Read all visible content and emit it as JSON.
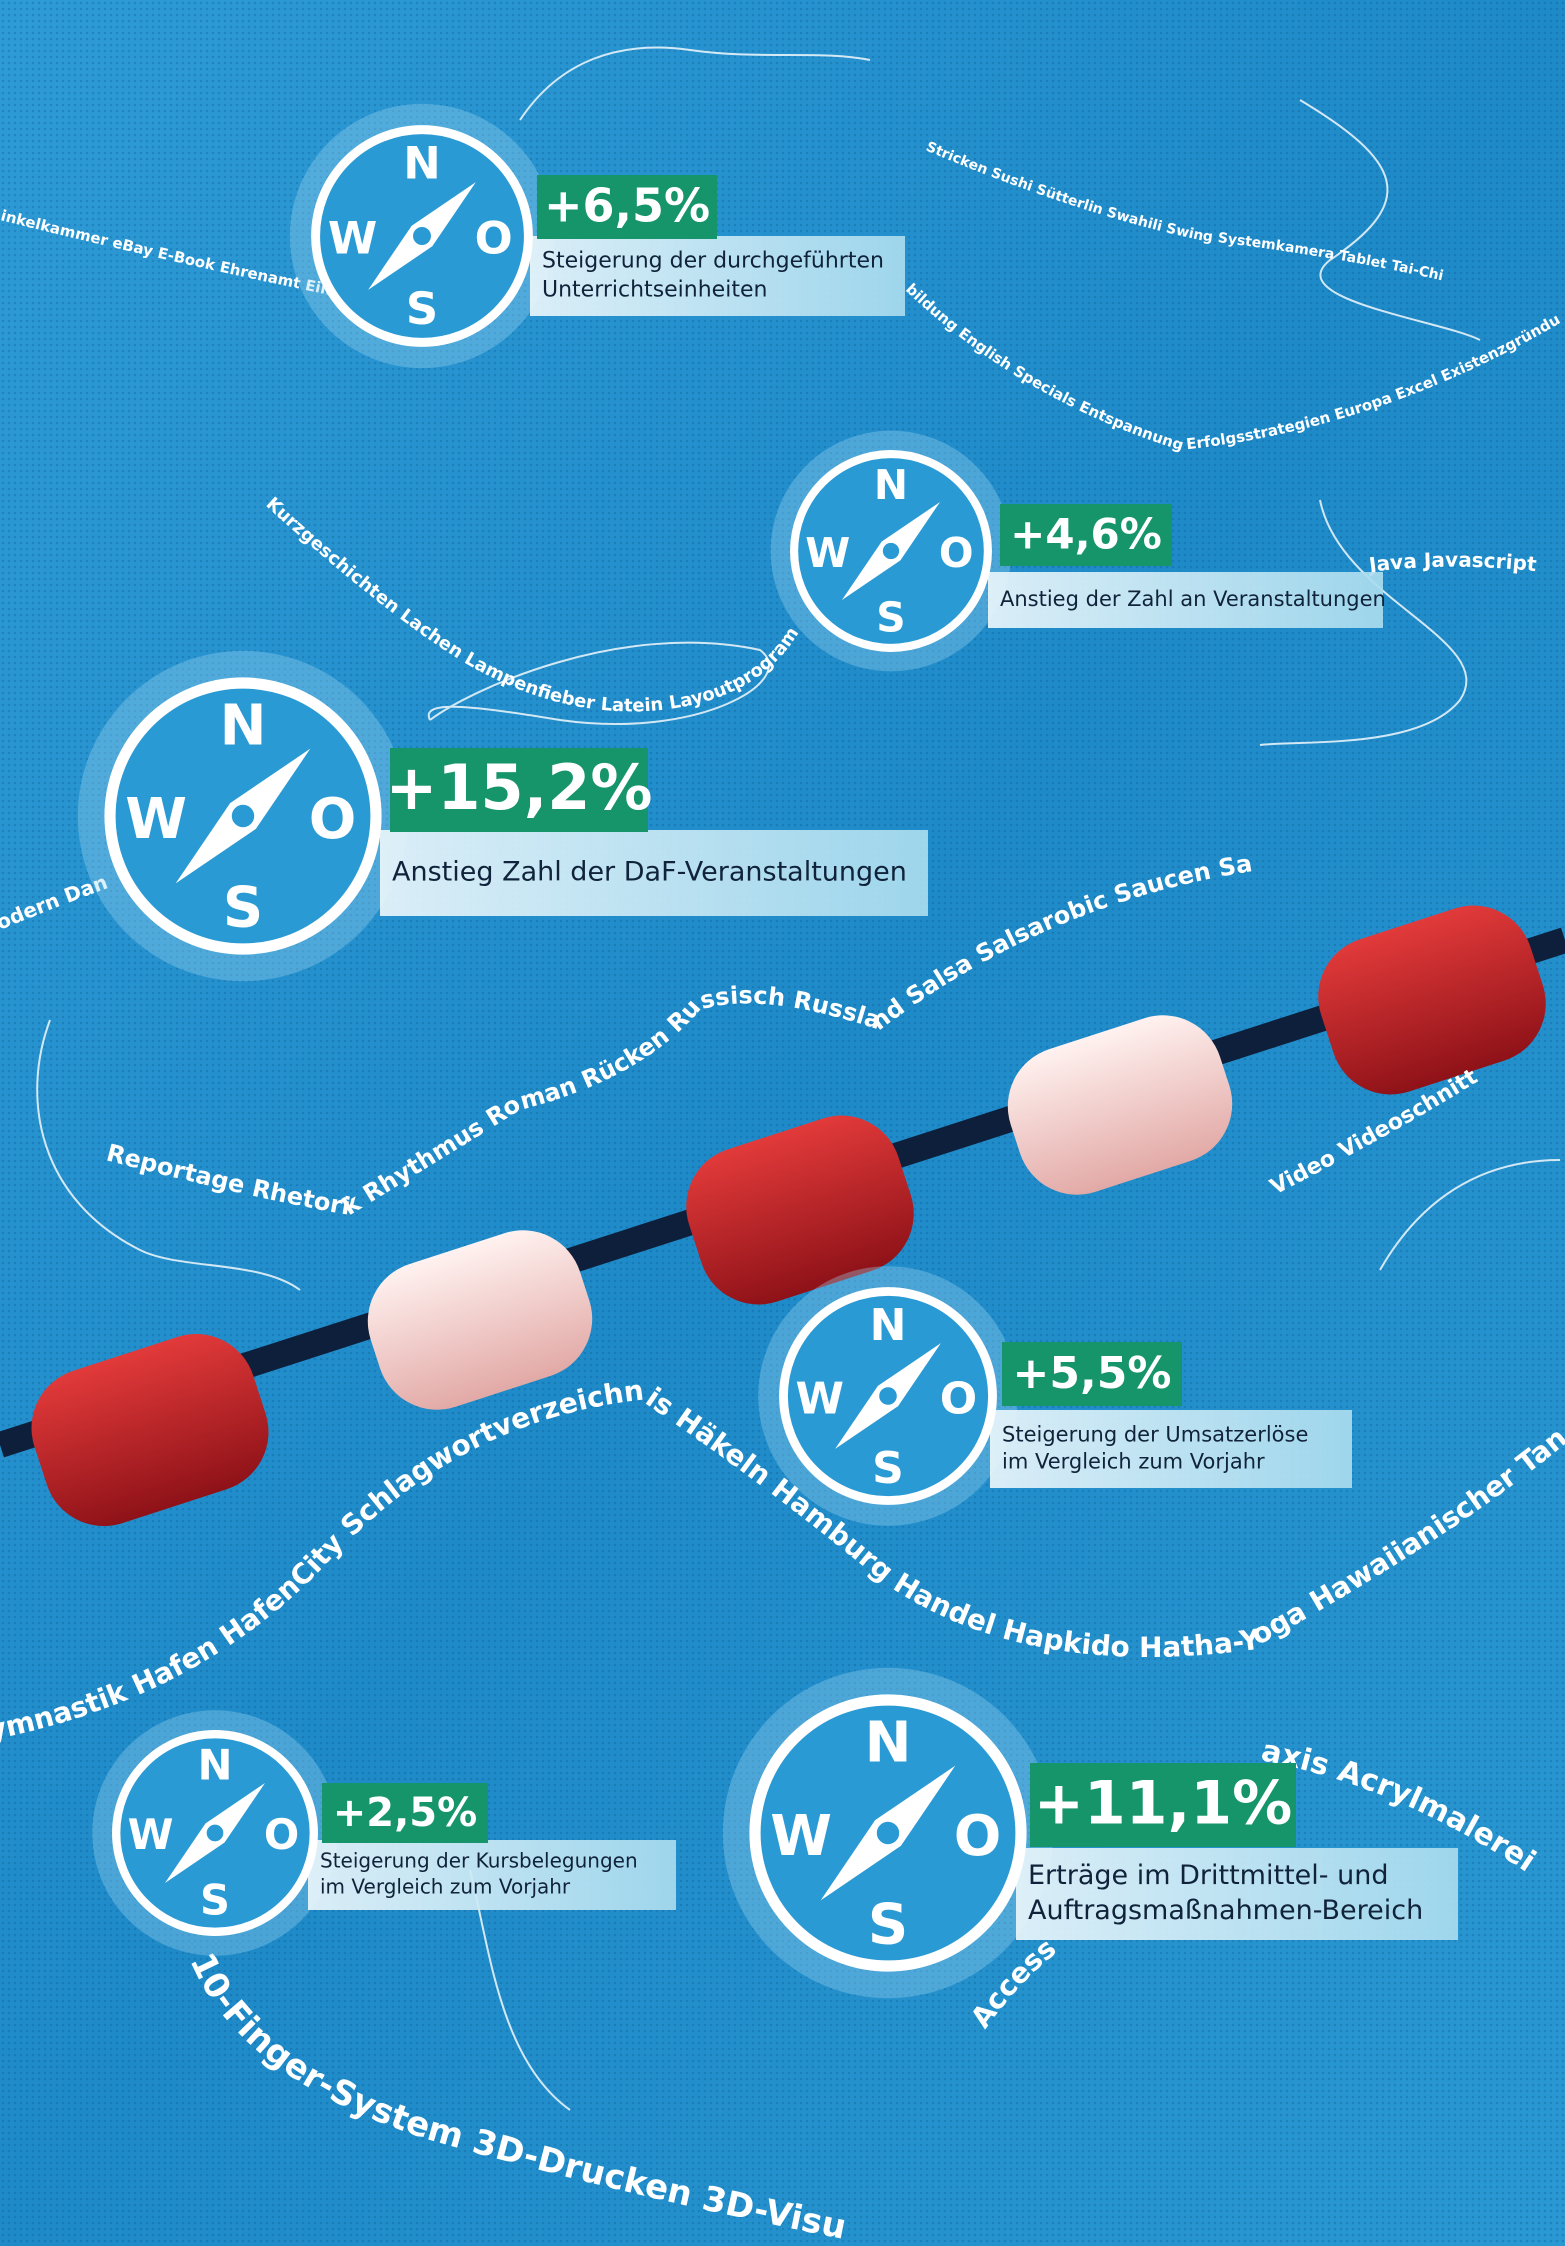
{
  "compass": {
    "n": "N",
    "w": "W",
    "o": "O",
    "s": "S"
  },
  "stats": [
    {
      "value": "+6,5%",
      "lines": [
        "Steigerung der durchgeführten",
        "Unterrichtseinheiten"
      ]
    },
    {
      "value": "+4,6%",
      "lines": [
        "Anstieg der Zahl an Veranstaltungen"
      ]
    },
    {
      "value": "+15,2%",
      "lines": [
        "Anstieg Zahl der DaF-Veranstaltungen"
      ]
    },
    {
      "value": "+5,5%",
      "lines": [
        "Steigerung der Umsatzerlöse",
        "im Vergleich zum Vorjahr"
      ]
    },
    {
      "value": "+2,5%",
      "lines": [
        "Steigerung der Kursbelegungen",
        "im Vergleich zum Vorjahr"
      ]
    },
    {
      "value": "+11,1%",
      "lines": [
        "Erträge im Drittmittel- und",
        "Auftragsmaßnahmen-Bereich"
      ]
    }
  ],
  "words": [
    "Reportage Rhetorik Rhythmus Roman Rücken Russisch Russland Salsa Salsarobic Saucen Saxophon",
    "Kurzgeschichten Lachen Lampenfieber Latein Layoutprogramm",
    "ymnastik Hafen HafenCity Schlagwortverzeichnis Häkeln Hamburg Handel Hapkido Hatha-Yoga Hawaiianischer Tanz Hebr",
    "10-Finger-System 3D-Drucken 3D-Visu",
    "Access",
    "axis Acrylmalerei",
    "Video Videoschnitt",
    "Java Javascript",
    "Stricken Sushi Sütterlin Swahili Swing Systemkamera Tablet Tai-Chi Ta",
    "bildung English Specials Entspannung Erfolgsstrategien Europa Excel Existenzgründung Exp",
    "inkelkammer eBay E-Book Ehrenamt Ein",
    "odern Dan"
  ]
}
